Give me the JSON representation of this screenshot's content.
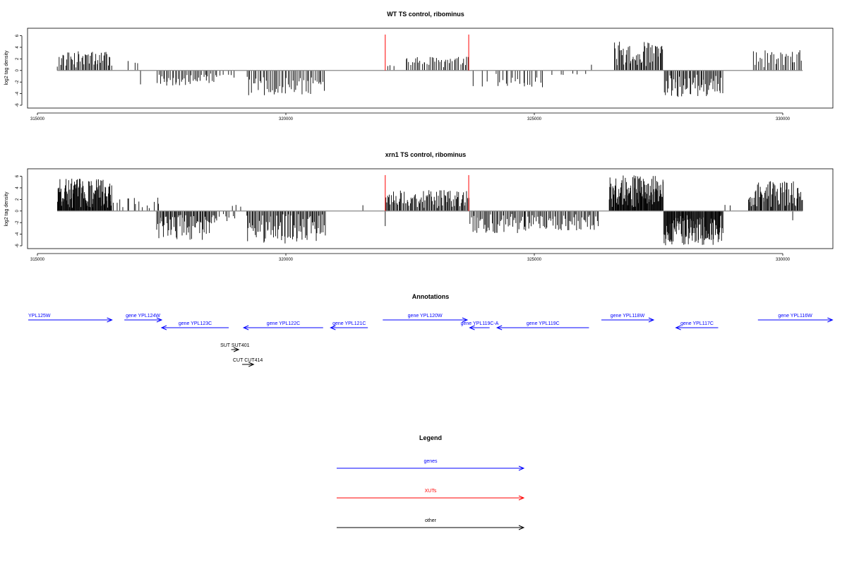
{
  "chart_data": [
    {
      "type": "bar",
      "title": "WT TS control, ribominus",
      "xlabel": "",
      "ylabel": "log2 tag density",
      "xlim": [
        314800,
        331000
      ],
      "ylim": [
        -6,
        6.8
      ],
      "xticks": [
        315000,
        320000,
        325000,
        330000
      ],
      "xtick_labels": [
        "315000",
        "320000",
        "325000",
        "330000"
      ],
      "yticks": [
        -6,
        -4,
        -2,
        0,
        2,
        4,
        6
      ],
      "ytick_labels": [
        "-6",
        "-4",
        "-2",
        "0",
        "2",
        "4",
        "6"
      ],
      "grid": false,
      "baseline": {
        "x_start": 315400,
        "x_end": 330400,
        "y": 0,
        "color": "#888888"
      },
      "markers": [
        {
          "x": 322000,
          "y": 6.2,
          "color": "#ff0000"
        },
        {
          "x": 323680,
          "y": 6.2,
          "color": "#ff0000"
        }
      ],
      "density_regions": [
        {
          "x_start": 315400,
          "x_end": 315700,
          "sign": 1,
          "count": 12,
          "min": 0.6,
          "max": 3.2,
          "spacing": 25
        },
        {
          "x_start": 315700,
          "x_end": 316500,
          "sign": 1,
          "count": 36,
          "min": 0.5,
          "max": 3.4,
          "spacing": 22
        },
        {
          "x_start": 316800,
          "x_end": 317100,
          "sign": 1,
          "count": 3,
          "min": 1.0,
          "max": 1.8,
          "spacing": 90
        },
        {
          "x_start": 317050,
          "x_end": 317100,
          "sign": -1,
          "count": 1,
          "min": 2.4,
          "max": 2.4,
          "spacing": 50
        },
        {
          "x_start": 317400,
          "x_end": 318600,
          "sign": -1,
          "count": 40,
          "min": 0.5,
          "max": 2.6,
          "spacing": 30
        },
        {
          "x_start": 318600,
          "x_end": 319000,
          "sign": -1,
          "count": 6,
          "min": 0.4,
          "max": 1.5,
          "spacing": 65
        },
        {
          "x_start": 319200,
          "x_end": 320800,
          "sign": -1,
          "count": 50,
          "min": 0.5,
          "max": 4.3,
          "spacing": 32
        },
        {
          "x_start": 322000,
          "x_end": 322200,
          "sign": 1,
          "count": 3,
          "min": 0.6,
          "max": 1.4,
          "spacing": 60
        },
        {
          "x_start": 322400,
          "x_end": 323700,
          "sign": 1,
          "count": 40,
          "min": 0.5,
          "max": 2.4,
          "spacing": 32
        },
        {
          "x_start": 323700,
          "x_end": 324200,
          "sign": -1,
          "count": 3,
          "min": 1.5,
          "max": 2.8,
          "spacing": 150
        },
        {
          "x_start": 324200,
          "x_end": 325200,
          "sign": -1,
          "count": 20,
          "min": 0.6,
          "max": 2.9,
          "spacing": 50
        },
        {
          "x_start": 325300,
          "x_end": 326100,
          "sign": -1,
          "count": 6,
          "min": 0.4,
          "max": 1.0,
          "spacing": 130
        },
        {
          "x_start": 326100,
          "x_end": 326200,
          "sign": 1,
          "count": 1,
          "min": 1.0,
          "max": 1.0,
          "spacing": 50
        },
        {
          "x_start": 326600,
          "x_end": 327600,
          "sign": 1,
          "count": 50,
          "min": 0.6,
          "max": 5.0,
          "spacing": 20
        },
        {
          "x_start": 327600,
          "x_end": 328800,
          "sign": -1,
          "count": 55,
          "min": 0.6,
          "max": 4.6,
          "spacing": 22
        },
        {
          "x_start": 329400,
          "x_end": 330400,
          "sign": 1,
          "count": 30,
          "min": 0.5,
          "max": 3.5,
          "spacing": 33
        }
      ]
    },
    {
      "type": "bar",
      "title": "xrn1 TS control, ribominus",
      "xlabel": "",
      "ylabel": "log2 tag density",
      "xlim": [
        314800,
        331000
      ],
      "ylim": [
        -6,
        6.8
      ],
      "xticks": [
        315000,
        320000,
        325000,
        330000
      ],
      "xtick_labels": [
        "315000",
        "320000",
        "325000",
        "330000"
      ],
      "yticks": [
        -6,
        -4,
        -2,
        0,
        2,
        4,
        6
      ],
      "ytick_labels": [
        "-6",
        "-4",
        "-2",
        "0",
        "2",
        "4",
        "6"
      ],
      "grid": false,
      "baseline": {
        "x_start": 315400,
        "x_end": 330400,
        "y": 0,
        "color": "#888888"
      },
      "markers": [
        {
          "x": 322000,
          "y": 6.2,
          "color": "#ff0000"
        },
        {
          "x": 323680,
          "y": 6.2,
          "color": "#ff0000"
        }
      ],
      "density_regions": [
        {
          "x_start": 315400,
          "x_end": 316500,
          "sign": 1,
          "count": 110,
          "min": 0.5,
          "max": 5.6,
          "spacing": 10
        },
        {
          "x_start": 316500,
          "x_end": 317300,
          "sign": 1,
          "count": 12,
          "min": 0.5,
          "max": 2.6,
          "spacing": 65
        },
        {
          "x_start": 317300,
          "x_end": 317500,
          "sign": 1,
          "count": 3,
          "min": 1.0,
          "max": 2.6,
          "spacing": 60
        },
        {
          "x_start": 317400,
          "x_end": 318600,
          "sign": -1,
          "count": 65,
          "min": 0.6,
          "max": 5.0,
          "spacing": 18
        },
        {
          "x_start": 318600,
          "x_end": 319000,
          "sign": -1,
          "count": 8,
          "min": 0.5,
          "max": 2.0,
          "spacing": 50
        },
        {
          "x_start": 318900,
          "x_end": 319100,
          "sign": 1,
          "count": 3,
          "min": 0.5,
          "max": 1.5,
          "spacing": 60
        },
        {
          "x_start": 319200,
          "x_end": 320800,
          "sign": -1,
          "count": 80,
          "min": 0.5,
          "max": 5.6,
          "spacing": 20
        },
        {
          "x_start": 321500,
          "x_end": 321600,
          "sign": 1,
          "count": 1,
          "min": 1.0,
          "max": 1.0,
          "spacing": 50
        },
        {
          "x_start": 321950,
          "x_end": 322050,
          "sign": -1,
          "count": 1,
          "min": 2.6,
          "max": 2.6,
          "spacing": 50
        },
        {
          "x_start": 322000,
          "x_end": 323700,
          "sign": 1,
          "count": 90,
          "min": 0.5,
          "max": 3.6,
          "spacing": 18
        },
        {
          "x_start": 323700,
          "x_end": 324800,
          "sign": -1,
          "count": 45,
          "min": 0.5,
          "max": 3.8,
          "spacing": 24
        },
        {
          "x_start": 324800,
          "x_end": 326300,
          "sign": -1,
          "count": 60,
          "min": 0.5,
          "max": 3.4,
          "spacing": 25
        },
        {
          "x_start": 326500,
          "x_end": 327600,
          "sign": 1,
          "count": 110,
          "min": 0.6,
          "max": 6.2,
          "spacing": 10
        },
        {
          "x_start": 327600,
          "x_end": 328800,
          "sign": -1,
          "count": 110,
          "min": 0.6,
          "max": 6.0,
          "spacing": 11
        },
        {
          "x_start": 328800,
          "x_end": 329000,
          "sign": 1,
          "count": 2,
          "min": 0.6,
          "max": 1.2,
          "spacing": 80
        },
        {
          "x_start": 329300,
          "x_end": 330400,
          "sign": 1,
          "count": 70,
          "min": 0.5,
          "max": 5.2,
          "spacing": 16
        },
        {
          "x_start": 330150,
          "x_end": 330250,
          "sign": -1,
          "count": 1,
          "min": 1.6,
          "max": 1.6,
          "spacing": 50
        }
      ]
    }
  ],
  "annotations": {
    "title": "Annotations",
    "features": [
      {
        "label": "YPL125W",
        "start": 314800,
        "end": 316500,
        "strand": "+",
        "row": 0,
        "color": "#0000ff"
      },
      {
        "label": "gene YPL124W",
        "start": 316750,
        "end": 317500,
        "strand": "+",
        "row": 0,
        "color": "#0000ff"
      },
      {
        "label": "gene YPL123C",
        "start": 317500,
        "end": 318850,
        "strand": "-",
        "row": 1,
        "color": "#0000ff"
      },
      {
        "label": "gene YPL122C",
        "start": 319150,
        "end": 320750,
        "strand": "-",
        "row": 1,
        "color": "#0000ff"
      },
      {
        "label": "gene YPL121C",
        "start": 320900,
        "end": 321650,
        "strand": "-",
        "row": 1,
        "color": "#0000ff"
      },
      {
        "label": "gene YPL120W",
        "start": 321950,
        "end": 323650,
        "strand": "+",
        "row": 0,
        "color": "#0000ff"
      },
      {
        "label": "gene YPL119C-A",
        "start": 323700,
        "end": 324100,
        "strand": "-",
        "row": 1,
        "color": "#0000ff"
      },
      {
        "label": "gene YPL119C",
        "start": 324250,
        "end": 326100,
        "strand": "-",
        "row": 1,
        "color": "#0000ff"
      },
      {
        "label": "gene YPL118W",
        "start": 326350,
        "end": 327400,
        "strand": "+",
        "row": 0,
        "color": "#0000ff"
      },
      {
        "label": "gene YPL117C",
        "start": 327850,
        "end": 328700,
        "strand": "-",
        "row": 1,
        "color": "#0000ff"
      },
      {
        "label": "gene YPL116W",
        "start": 329500,
        "end": 331000,
        "strand": "+",
        "row": 0,
        "color": "#0000ff"
      },
      {
        "label": "SUT SUT401",
        "start": 318900,
        "end": 319050,
        "strand": "+",
        "row": 2,
        "color": "#000000"
      },
      {
        "label": "CUT CUT414",
        "start": 319120,
        "end": 319350,
        "strand": "+",
        "row": 3,
        "color": "#000000"
      }
    ]
  },
  "legend": {
    "title": "Legend",
    "entries": [
      {
        "label": "genes",
        "color": "#0000ff"
      },
      {
        "label": "XUTs",
        "color": "#ff0000"
      },
      {
        "label": "other",
        "color": "#000000"
      }
    ]
  }
}
